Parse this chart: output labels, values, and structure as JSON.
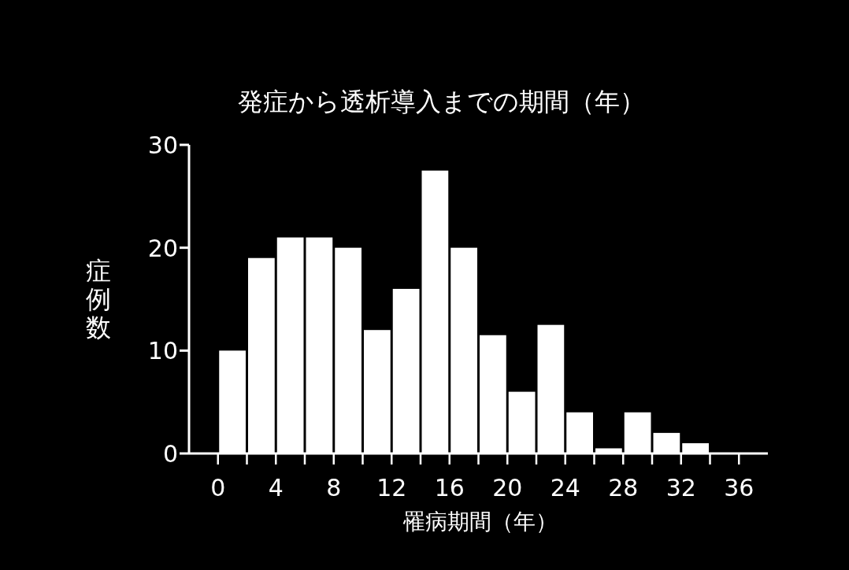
{
  "chart_data": {
    "type": "histogram",
    "title": "発症から透析導入までの期間（年）",
    "xlabel": "罹病期間（年）",
    "ylabel": "症例数",
    "bins": [
      0,
      2,
      4,
      6,
      8,
      10,
      12,
      14,
      16,
      18,
      20,
      22,
      24,
      26,
      28,
      30,
      32,
      34
    ],
    "values": [
      10,
      19,
      21,
      21,
      20,
      12,
      16,
      27.5,
      20,
      11.5,
      6,
      12.5,
      4,
      0.5,
      4,
      2,
      1
    ],
    "color": "#ffffff",
    "xlim": [
      -2,
      38
    ],
    "xticks": [
      0,
      {
        "value": 2,
        "label": null
      },
      4,
      {
        "value": 6,
        "label": null
      },
      8,
      {
        "value": 10,
        "label": null
      },
      12,
      {
        "value": 14,
        "label": null
      },
      16,
      {
        "value": 18,
        "label": null
      },
      20,
      {
        "value": 22,
        "label": null
      },
      24,
      {
        "value": 26,
        "label": null
      },
      28,
      {
        "value": 30,
        "label": null
      },
      32,
      {
        "value": 34,
        "label": null
      },
      36
    ],
    "ylim": [
      0,
      30
    ],
    "yticks": [
      0,
      10,
      20,
      30
    ],
    "grid": false
  }
}
